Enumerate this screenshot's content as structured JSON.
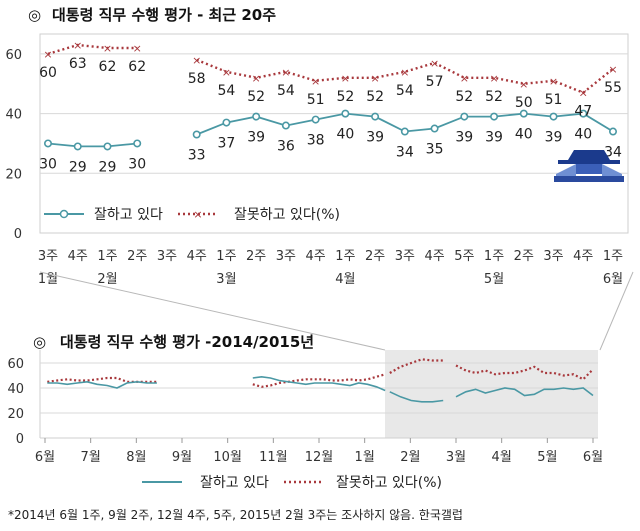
{
  "chart_data": [
    {
      "type": "line",
      "title": "대통령 직무 수행 평가 - 최근 20주",
      "title_icon": "◎",
      "x_labels": [
        "3주",
        "4주",
        "1주",
        "2주",
        "3주",
        "4주",
        "1주",
        "2주",
        "3주",
        "4주",
        "1주",
        "2주",
        "3주",
        "4주",
        "5주",
        "1주",
        "2주",
        "3주",
        "4주",
        "1주"
      ],
      "month_labels": [
        {
          "at": 0,
          "label": "1월"
        },
        {
          "at": 2,
          "label": "2월"
        },
        {
          "at": 6,
          "label": "3월"
        },
        {
          "at": 10,
          "label": "4월"
        },
        {
          "at": 15,
          "label": "5월"
        },
        {
          "at": 19,
          "label": "6월"
        }
      ],
      "ylim": [
        0,
        65
      ],
      "yticks": [
        0,
        20,
        40,
        60
      ],
      "grid": true,
      "series": [
        {
          "name": "잘하고 있다",
          "color": "#4a98a4",
          "style": "solid-circles",
          "values": [
            30,
            29,
            29,
            30,
            null,
            33,
            37,
            39,
            36,
            38,
            40,
            39,
            34,
            35,
            39,
            39,
            40,
            39,
            40,
            34
          ]
        },
        {
          "name": "잘못하고 있다(%)",
          "color": "#a8383c",
          "style": "dotted-x",
          "values": [
            60,
            63,
            62,
            62,
            null,
            58,
            54,
            52,
            54,
            51,
            52,
            52,
            54,
            57,
            52,
            52,
            50,
            51,
            47,
            55
          ]
        }
      ],
      "legend": "bottom-left",
      "icon": "blue-house-icon"
    },
    {
      "type": "line",
      "title": "대통령 직무 수행 평가 -2014/2015년",
      "title_icon": "◎",
      "x_labels": [
        "6월",
        "7월",
        "8월",
        "9월",
        "10월",
        "11월",
        "12월",
        "1월",
        "2월",
        "3월",
        "4월",
        "5월",
        "6월"
      ],
      "ylim": [
        0,
        70
      ],
      "yticks": [
        0,
        20,
        40,
        60
      ],
      "grid": true,
      "highlight_range": [
        "1월",
        "6월"
      ],
      "segments": [
        {
          "good": [
            44,
            44,
            43,
            44,
            45,
            43,
            42,
            40,
            44,
            45,
            44,
            44
          ],
          "bad": [
            45,
            46,
            47,
            46,
            46,
            47,
            48,
            48,
            45,
            45,
            45,
            45
          ]
        },
        {
          "good": [
            48,
            49,
            48,
            46,
            45,
            44,
            43,
            44,
            44,
            44,
            43,
            42,
            44,
            43,
            41,
            38
          ],
          "bad": [
            43,
            41,
            42,
            44,
            45,
            46,
            47,
            47,
            47,
            46,
            46,
            47,
            46,
            47,
            49,
            51
          ]
        },
        {
          "good": [
            37,
            33,
            30,
            29,
            29,
            30
          ],
          "bad": [
            52,
            57,
            60,
            63,
            62,
            62
          ]
        },
        {
          "good": [
            33,
            37,
            39,
            36,
            38,
            40,
            39,
            34,
            35,
            39,
            39,
            40,
            39,
            40,
            34
          ],
          "bad": [
            58,
            54,
            52,
            54,
            51,
            52,
            52,
            54,
            57,
            52,
            52,
            50,
            51,
            47,
            55
          ]
        }
      ],
      "series_names": [
        "잘하고 있다",
        "잘못하고 있다(%)"
      ]
    }
  ],
  "footnote": "*2014년 6월 1주, 9월 2주, 12월 4주, 5주, 2015년 2월 3주는 조사하지 않음. 한국갤럽"
}
